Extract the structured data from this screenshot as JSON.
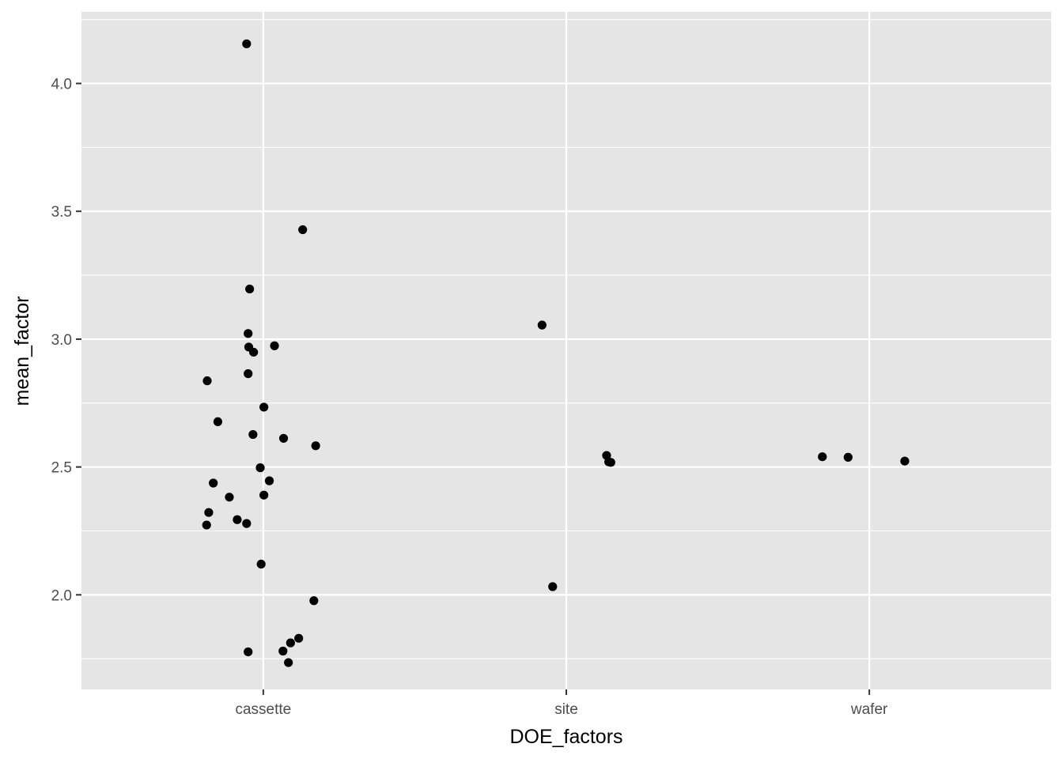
{
  "chart_data": {
    "type": "scatter",
    "title": "",
    "xlabel": "DOE_factors",
    "ylabel": "mean_factor",
    "categories": [
      "cassette",
      "site",
      "wafer"
    ],
    "ylim": [
      1.63,
      4.28
    ],
    "y_ticks": [
      "2.0",
      "2.5",
      "3.0",
      "3.5",
      "4.0"
    ],
    "grid": true,
    "legend": "none",
    "colors": {
      "panel": "#e5e5e5",
      "grid": "#ffffff",
      "point": "#000000",
      "tick_text": "#4d4d4d"
    },
    "points": [
      {
        "x": "cassette",
        "jitter": -0.055,
        "y": 4.155
      },
      {
        "x": "cassette",
        "jitter": 0.13,
        "y": 3.428
      },
      {
        "x": "cassette",
        "jitter": -0.045,
        "y": 3.196
      },
      {
        "x": "cassette",
        "jitter": -0.05,
        "y": 3.022
      },
      {
        "x": "cassette",
        "jitter": 0.037,
        "y": 2.974
      },
      {
        "x": "cassette",
        "jitter": -0.048,
        "y": 2.969
      },
      {
        "x": "cassette",
        "jitter": -0.032,
        "y": 2.949
      },
      {
        "x": "cassette",
        "jitter": -0.05,
        "y": 2.865
      },
      {
        "x": "cassette",
        "jitter": -0.185,
        "y": 2.837
      },
      {
        "x": "cassette",
        "jitter": 0.002,
        "y": 2.734
      },
      {
        "x": "cassette",
        "jitter": -0.15,
        "y": 2.677
      },
      {
        "x": "cassette",
        "jitter": -0.034,
        "y": 2.627
      },
      {
        "x": "cassette",
        "jitter": 0.067,
        "y": 2.612
      },
      {
        "x": "cassette",
        "jitter": 0.173,
        "y": 2.583
      },
      {
        "x": "cassette",
        "jitter": -0.01,
        "y": 2.497
      },
      {
        "x": "cassette",
        "jitter": 0.02,
        "y": 2.446
      },
      {
        "x": "cassette",
        "jitter": -0.165,
        "y": 2.437
      },
      {
        "x": "cassette",
        "jitter": 0.002,
        "y": 2.39
      },
      {
        "x": "cassette",
        "jitter": -0.112,
        "y": 2.382
      },
      {
        "x": "cassette",
        "jitter": -0.18,
        "y": 2.322
      },
      {
        "x": "cassette",
        "jitter": -0.086,
        "y": 2.294
      },
      {
        "x": "cassette",
        "jitter": -0.055,
        "y": 2.279
      },
      {
        "x": "cassette",
        "jitter": -0.187,
        "y": 2.273
      },
      {
        "x": "cassette",
        "jitter": -0.007,
        "y": 2.12
      },
      {
        "x": "cassette",
        "jitter": 0.167,
        "y": 1.977
      },
      {
        "x": "cassette",
        "jitter": 0.117,
        "y": 1.83
      },
      {
        "x": "cassette",
        "jitter": 0.09,
        "y": 1.812
      },
      {
        "x": "cassette",
        "jitter": 0.065,
        "y": 1.78
      },
      {
        "x": "cassette",
        "jitter": -0.05,
        "y": 1.777
      },
      {
        "x": "cassette",
        "jitter": 0.083,
        "y": 1.735
      },
      {
        "x": "site",
        "jitter": -0.08,
        "y": 3.055
      },
      {
        "x": "site",
        "jitter": 0.133,
        "y": 2.545
      },
      {
        "x": "site",
        "jitter": 0.14,
        "y": 2.52
      },
      {
        "x": "site",
        "jitter": 0.147,
        "y": 2.518
      },
      {
        "x": "site",
        "jitter": -0.045,
        "y": 2.032
      },
      {
        "x": "wafer",
        "jitter": -0.155,
        "y": 2.54
      },
      {
        "x": "wafer",
        "jitter": -0.07,
        "y": 2.538
      },
      {
        "x": "wafer",
        "jitter": 0.117,
        "y": 2.523
      }
    ]
  }
}
